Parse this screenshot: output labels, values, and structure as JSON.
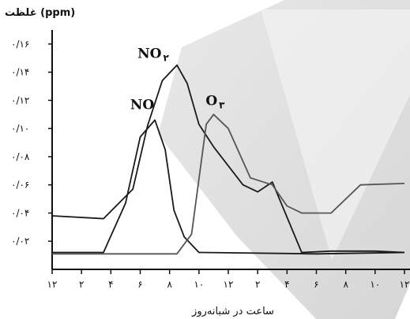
{
  "chart_data": {
    "type": "line",
    "ylabel": "غلظت (ppm)",
    "xlabel": "ساعت در شبانه‌روز",
    "y_tick_labels": [
      "۰/۰۲",
      "۰/۰۴",
      "۰/۰۶",
      "۰/۰۸",
      "۰/۱۰",
      "۰/۱۲",
      "۰/۱۴",
      "۰/۱۶"
    ],
    "x_tick_labels": [
      "۱۲",
      "۲",
      "۴",
      "۶",
      "۸",
      "۱۰",
      "۱۲",
      "۲",
      "۴",
      "۶",
      "۸",
      "۱۰",
      "۱۲"
    ],
    "ylim": [
      0,
      0.17
    ],
    "xlim": [
      0,
      24
    ],
    "grid": false,
    "series": [
      {
        "name": "NO",
        "label_main": "NO",
        "label_sub": "",
        "color": "#1a1a1a",
        "points": [
          [
            0,
            0.012
          ],
          [
            3.5,
            0.012
          ],
          [
            5,
            0.047
          ],
          [
            6,
            0.094
          ],
          [
            7,
            0.106
          ],
          [
            7.7,
            0.085
          ],
          [
            8.3,
            0.042
          ],
          [
            9,
            0.023
          ],
          [
            10,
            0.012
          ],
          [
            18,
            0.011
          ],
          [
            24,
            0.012
          ]
        ]
      },
      {
        "name": "NO2",
        "label_main": "NO",
        "label_sub": "۲",
        "color": "#1a1a1a",
        "points": [
          [
            0,
            0.038
          ],
          [
            3.5,
            0.036
          ],
          [
            5.5,
            0.057
          ],
          [
            6.5,
            0.102
          ],
          [
            7.5,
            0.134
          ],
          [
            8.5,
            0.145
          ],
          [
            9.2,
            0.132
          ],
          [
            10,
            0.103
          ],
          [
            11,
            0.087
          ],
          [
            13,
            0.06
          ],
          [
            14,
            0.055
          ],
          [
            15,
            0.062
          ],
          [
            17,
            0.012
          ],
          [
            19,
            0.013
          ],
          [
            22,
            0.013
          ],
          [
            24,
            0.012
          ]
        ]
      },
      {
        "name": "O3",
        "label_main": "O",
        "label_sub": "۳",
        "color": "#555555",
        "points": [
          [
            0,
            0.011
          ],
          [
            8.5,
            0.011
          ],
          [
            9.5,
            0.025
          ],
          [
            10.5,
            0.103
          ],
          [
            11,
            0.11
          ],
          [
            12,
            0.1
          ],
          [
            13.5,
            0.065
          ],
          [
            15,
            0.06
          ],
          [
            16,
            0.045
          ],
          [
            17,
            0.04
          ],
          [
            19,
            0.04
          ],
          [
            21,
            0.06
          ],
          [
            24,
            0.061
          ]
        ]
      }
    ]
  }
}
